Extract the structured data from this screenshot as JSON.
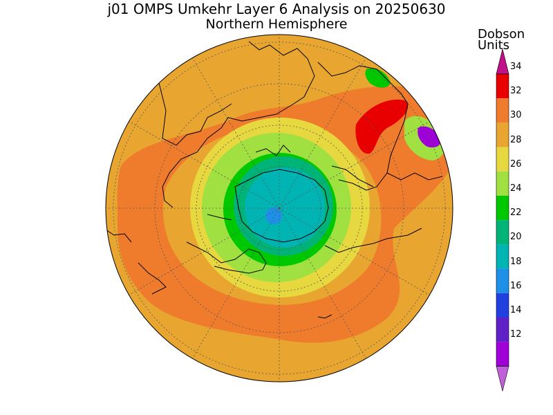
{
  "title": "j01 OMPS Umkehr Layer 6 Analysis on 20250630",
  "subtitle": "Northern Hemisphere",
  "units": {
    "line1": "Dobson",
    "line2": "Units"
  },
  "colorbar": {
    "levels": [
      "34",
      "32",
      "30",
      "28",
      "26",
      "24",
      "22",
      "20",
      "18",
      "16",
      "14",
      "12"
    ],
    "colors": [
      "#e80000",
      "#ee7c2c",
      "#e8a630",
      "#e8d840",
      "#a0e040",
      "#00c800",
      "#00b478",
      "#00b4b4",
      "#1e90e8",
      "#2040e0",
      "#6020c8",
      "#a000d8"
    ],
    "top_arrow_color": "#c0108a",
    "bottom_arrow_color": "#c060d8"
  },
  "palette": {
    "background_field": "#e8a630",
    "ring_dark_orange": "#ee7c2c",
    "coast": "#000000",
    "grid": "#555555"
  },
  "map_data": {
    "projection": "polar-stereographic-north",
    "center_value_du": 18,
    "pole_ring_values_du": [
      28,
      26,
      24,
      22,
      20,
      18
    ],
    "maximum_region_du": 34,
    "minimum_region_du": 12
  }
}
